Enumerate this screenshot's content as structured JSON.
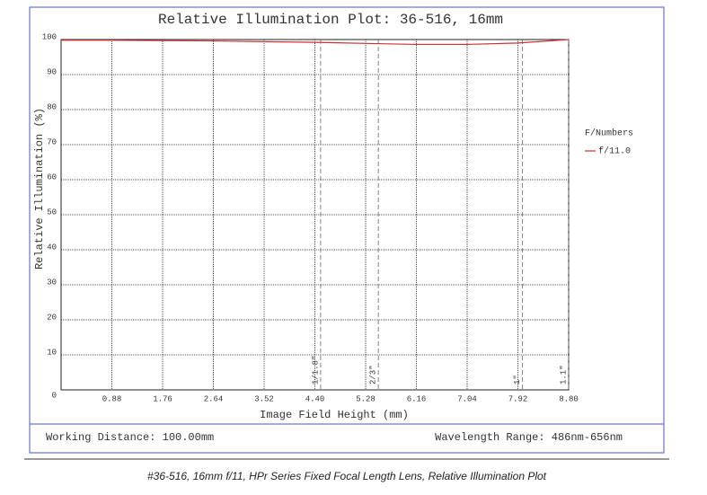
{
  "chart_data": {
    "type": "line",
    "title": "Relative Illumination Plot: 36-516, 16mm",
    "x_label": "Image Field Height (mm)",
    "y_label": "Relative Illumination (%)",
    "x": [
      0,
      0.88,
      1.76,
      2.64,
      3.52,
      4.4,
      5.28,
      6.16,
      7.04,
      7.92,
      8.8
    ],
    "series": [
      {
        "name": "f/11.0",
        "color": "#d03030",
        "values": [
          99.8,
          99.8,
          99.7,
          99.6,
          99.4,
          99.2,
          98.9,
          98.6,
          98.6,
          99.0,
          100
        ]
      }
    ],
    "legend_title": "F/Numbers",
    "xlim": [
      0,
      8.8
    ],
    "xticks": [
      0.88,
      1.76,
      2.64,
      3.52,
      {
        "value": 4.4,
        "label": "4.40"
      },
      5.28,
      6.16,
      7.04,
      7.92,
      {
        "value": 8.8,
        "label": "8.80"
      }
    ],
    "ylim": [
      0,
      100
    ],
    "yticks": [
      0,
      10,
      20,
      30,
      40,
      50,
      60,
      70,
      80,
      90,
      100
    ],
    "grid": true,
    "sensor_markers": [
      {
        "label": "1/1.8\"",
        "x": 4.5
      },
      {
        "label": "2/3\"",
        "x": 5.5
      },
      {
        "label": "1\"",
        "x": 8.0
      },
      {
        "label": "1.1\"",
        "x": 8.8
      }
    ],
    "working_distance": "Working Distance: 100.00mm",
    "wavelength_range": "Wavelength Range: 486nm-656nm"
  },
  "caption": "#36-516, 16mm f/11, HPr Series Fixed Focal Length Lens, Relative Illumination Plot"
}
